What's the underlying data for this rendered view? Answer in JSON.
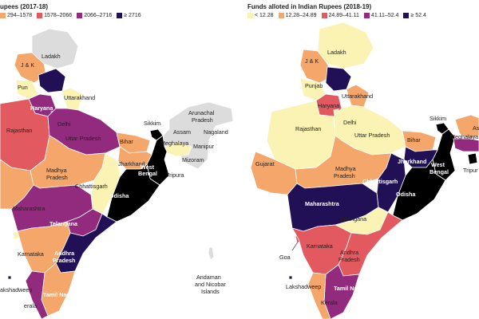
{
  "colors": {
    "bin1": "#fbf3b4",
    "bin2": "#f5a66a",
    "bin3": "#e25a60",
    "bin4": "#922a7e",
    "bin5": "#221057",
    "extreme": "#000000",
    "nodata": "#dcdcdc"
  },
  "left": {
    "title": "upees (2017-18)",
    "legend": [
      "294–1578",
      "1578–2066",
      "2066–2716",
      "≥ 2716"
    ],
    "labels": {
      "ladakh": "Ladakh",
      "jk": "J & K",
      "punjab": "Pun",
      "uttarakhand": "Uttarakhand",
      "haryana": "Haryana",
      "delhi": "Delhi",
      "rajasthan": "Rajasthan",
      "up": "Uttar Pradesh",
      "sikkim": "Sikkim",
      "arunachal1": "Arunachal",
      "arunachal2": "Pradesh",
      "assam": "Assam",
      "nagaland": "Nagaland",
      "meghalaya": "Meghalaya",
      "manipur": "Manipur",
      "bihar": "Bihar",
      "jharkhand": "Jharkhand",
      "wb1": "West",
      "wb2": "Bengal",
      "mizoram": "Mizoram",
      "tripura": "Tripura",
      "mp1": "Madhya",
      "mp2": "Pradesh",
      "chhattisgarh": "Chhattisgarh",
      "odisha": "Odisha",
      "maharashtra": "Maharashtra",
      "telangana": "Telangana",
      "karnataka": "Karnataka",
      "ap1": "Andhra",
      "ap2": "Pradesh",
      "andaman1": "Andaman",
      "andaman2": "and Nicobar",
      "andaman3": "Islands",
      "lakshadweep": "akshadweep",
      "tn": "Tamil Nadu",
      "kerala": "erala"
    }
  },
  "right": {
    "title": "Funds alloted in Indian Rupees (2018-19)",
    "legend": [
      "< 12.28",
      "12.28–24.89",
      "24.89–41.11",
      "41.11–52.4",
      "≥ 52.4"
    ],
    "labels": {
      "ladakh": "Ladakh",
      "jk": "J & K",
      "punjab": "Punjab",
      "uttarakhand": "Uttarakhand",
      "haryana": "Haryana",
      "delhi": "Delhi",
      "rajasthan": "Rajasthan",
      "up": "Uttar Pradesh",
      "sikkim": "Sikkim",
      "assam": "As",
      "meghalaya": "Meghalaya",
      "tripura": "Tripur",
      "bihar": "Bihar",
      "jharkhand": "Jharkhand",
      "wb1": "West",
      "wb2": "Bengal",
      "gujarat": "Gujarat",
      "mp1": "Madhya",
      "mp2": "Pradesh",
      "chhattisgarh": "Chhattisgarh",
      "odisha": "Odisha",
      "maharashtra": "Maharashtra",
      "telangana": "Telangana",
      "goa": "Goa",
      "karnataka": "Karnataka",
      "ap1": "Andhra",
      "ap2": "Pradesh",
      "lakshadweep": "Lakshadweep",
      "tn": "Tamil Nadu",
      "kerala": "Kerala"
    }
  }
}
